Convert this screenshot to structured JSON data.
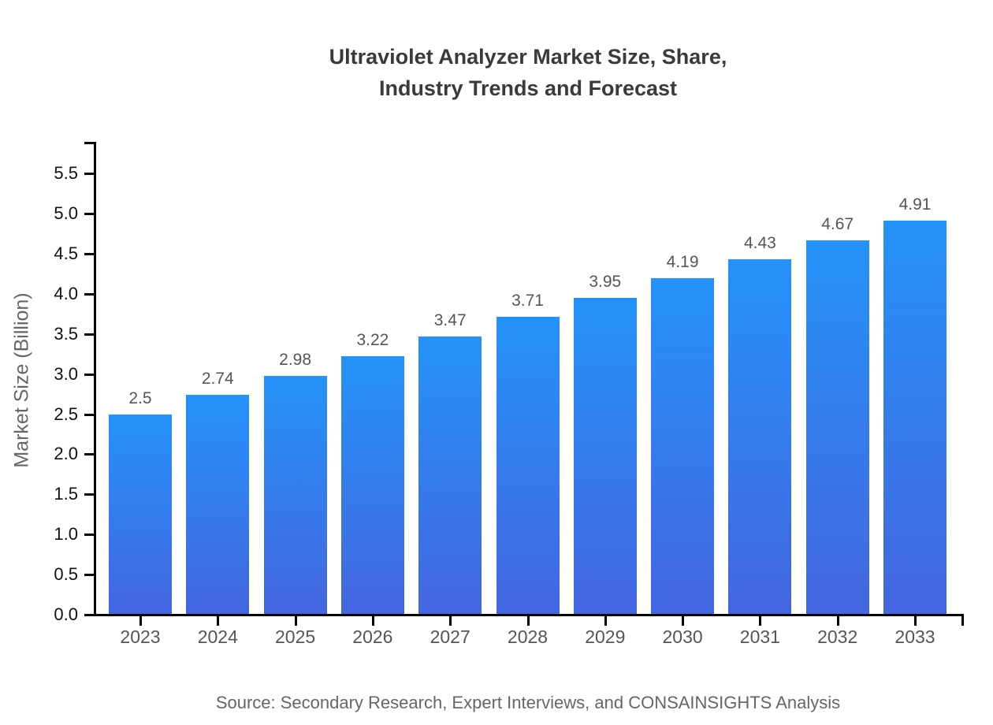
{
  "title": {
    "line1": "Ultraviolet Analyzer Market Size, Share,",
    "line2": "Industry Trends and Forecast"
  },
  "source": "Source: Secondary Research, Expert Interviews, and CONSAINSIGHTS Analysis",
  "chart_data": {
    "type": "bar",
    "title": "Ultraviolet Analyzer Market Size, Share, Industry Trends and Forecast",
    "categories": [
      "2023",
      "2024",
      "2025",
      "2026",
      "2027",
      "2028",
      "2029",
      "2030",
      "2031",
      "2032",
      "2033"
    ],
    "values": [
      2.5,
      2.74,
      2.98,
      3.22,
      3.47,
      3.71,
      3.95,
      4.19,
      4.43,
      4.67,
      4.91
    ],
    "data_labels": [
      "2.5",
      "2.74",
      "2.98",
      "3.22",
      "3.47",
      "3.71",
      "3.95",
      "4.19",
      "4.43",
      "4.67",
      "4.91"
    ],
    "xlabel": "",
    "ylabel": "Market Size (Billion)",
    "ylim": [
      0,
      5.5
    ],
    "ytick_step": 0.5,
    "grid": false,
    "legend": null,
    "bar_color_top": "#2492f8",
    "bar_color_bottom": "#4466e0"
  },
  "colors": {
    "title": "#3a3a3a",
    "axis": "#000000",
    "y_tick_label": "#111111",
    "x_tick_label": "#555555",
    "data_label": "#555555",
    "muted_text": "#666666"
  }
}
